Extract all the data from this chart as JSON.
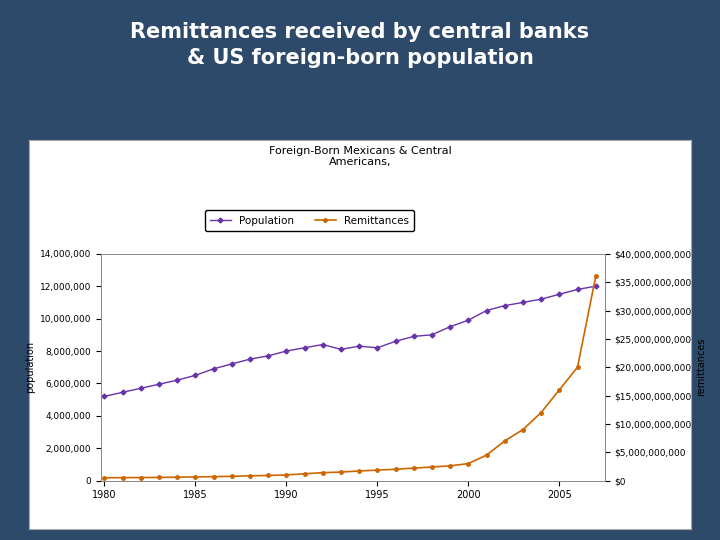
{
  "title_main": "Remittances received by central banks\n& US foreign-born population",
  "chart_title": "Foreign-Born Mexicans & Central\nAmericans,",
  "background_color": "#2E4A6B",
  "chart_bg": "#FFFFFF",
  "title_color": "#FFFFFF",
  "years": [
    1980,
    1981,
    1982,
    1983,
    1984,
    1985,
    1986,
    1987,
    1988,
    1989,
    1990,
    1991,
    1992,
    1993,
    1994,
    1995,
    1996,
    1997,
    1998,
    1999,
    2000,
    2001,
    2002,
    2003,
    2004,
    2005,
    2006,
    2007
  ],
  "population": [
    5200000,
    5450000,
    5700000,
    5950000,
    6200000,
    6500000,
    6900000,
    7200000,
    7500000,
    7700000,
    8000000,
    8200000,
    8400000,
    8100000,
    8300000,
    8200000,
    8600000,
    8900000,
    9000000,
    9500000,
    9900000,
    10500000,
    10800000,
    11000000,
    11200000,
    11500000,
    11800000,
    12000000
  ],
  "remittances": [
    500000000,
    520000000,
    540000000,
    560000000,
    600000000,
    650000000,
    700000000,
    750000000,
    850000000,
    900000000,
    1000000000,
    1200000000,
    1400000000,
    1500000000,
    1700000000,
    1850000000,
    2000000000,
    2200000000,
    2400000000,
    2600000000,
    3000000000,
    4500000000,
    7000000000,
    9000000000,
    12000000000,
    16000000000,
    20000000000,
    36000000000
  ],
  "pop_color": "#6633AA",
  "rem_color": "#CC6600",
  "pop_ylim": [
    0,
    14000000
  ],
  "rem_ylim": [
    0,
    40000000000
  ],
  "ylabel_left": "population",
  "ylabel_right": "remittances",
  "xlim_left": 1979.8,
  "xlim_right": 2007.5,
  "xticks": [
    1980,
    1985,
    1990,
    1995,
    2000,
    2005
  ],
  "pop_yticks": [
    0,
    2000000,
    4000000,
    6000000,
    8000000,
    10000000,
    12000000,
    14000000
  ],
  "rem_yticks": [
    0,
    5000000000,
    10000000000,
    15000000000,
    20000000000,
    25000000000,
    30000000000,
    35000000000,
    40000000000
  ]
}
